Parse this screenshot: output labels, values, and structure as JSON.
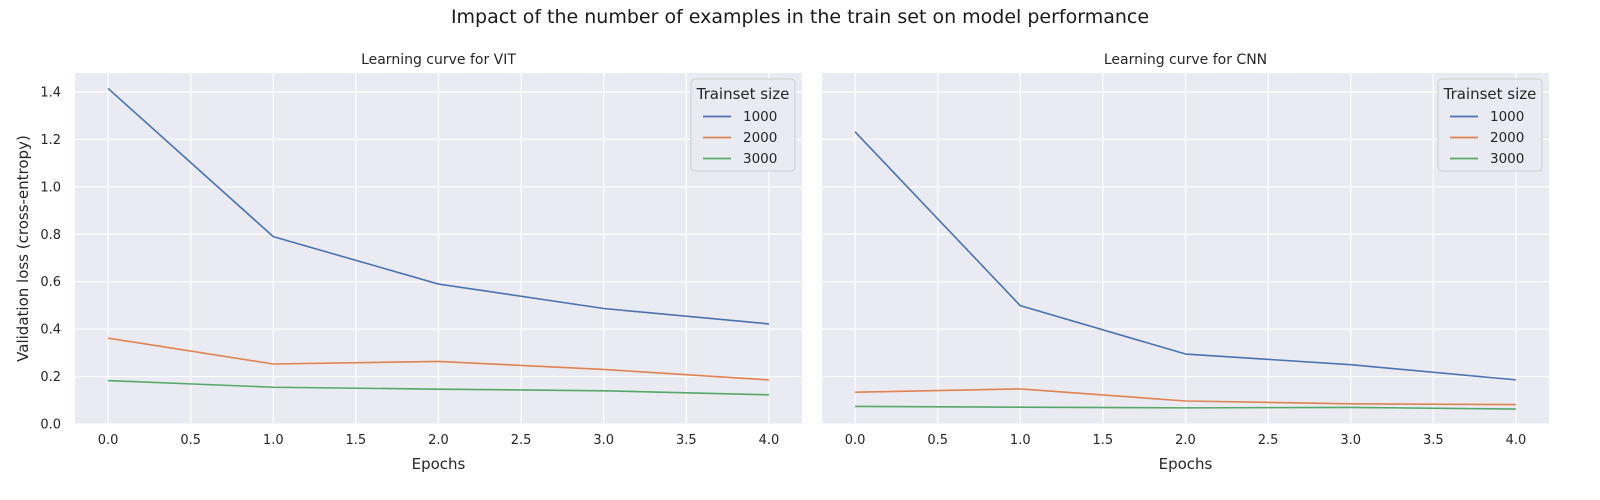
{
  "suptitle": "Impact of the number of examples in the train set on model performance",
  "style": {
    "background": "#eaeaf2",
    "grid_color": "#ffffff",
    "series_colors": [
      "#4c72b0",
      "#dd8452",
      "#55a868"
    ]
  },
  "chart_data": [
    {
      "type": "line",
      "title": "Learning curve for VIT",
      "xlabel": "Epochs",
      "ylabel": "Validation loss (cross-entropy)",
      "x": [
        0,
        1,
        2,
        3,
        4
      ],
      "xlim": [
        -0.2,
        4.2
      ],
      "ylim": [
        0,
        1.48
      ],
      "xticks": [
        "0.0",
        "0.5",
        "1.0",
        "1.5",
        "2.0",
        "2.5",
        "3.0",
        "3.5",
        "4.0"
      ],
      "yticks": [
        "0.0",
        "0.2",
        "0.4",
        "0.6",
        "0.8",
        "1.0",
        "1.2",
        "1.4"
      ],
      "grid": true,
      "legend": {
        "title": "Trainset size",
        "placement": "top-right"
      },
      "series": [
        {
          "name": "1000",
          "values": [
            1.415,
            0.79,
            0.59,
            0.487,
            0.422
          ]
        },
        {
          "name": "2000",
          "values": [
            0.362,
            0.253,
            0.264,
            0.23,
            0.186
          ]
        },
        {
          "name": "3000",
          "values": [
            0.183,
            0.155,
            0.147,
            0.14,
            0.123
          ]
        }
      ]
    },
    {
      "type": "line",
      "title": "Learning curve for CNN",
      "xlabel": "Epochs",
      "ylabel": "",
      "x": [
        0,
        1,
        2,
        3,
        4
      ],
      "xlim": [
        -0.2,
        4.2
      ],
      "ylim": [
        0,
        1.48
      ],
      "xticks": [
        "0.0",
        "0.5",
        "1.0",
        "1.5",
        "2.0",
        "2.5",
        "3.0",
        "3.5",
        "4.0"
      ],
      "yticks": [],
      "grid": true,
      "legend": {
        "title": "Trainset size",
        "placement": "top-right"
      },
      "series": [
        {
          "name": "1000",
          "values": [
            1.232,
            0.499,
            0.295,
            0.25,
            0.186
          ]
        },
        {
          "name": "2000",
          "values": [
            0.134,
            0.148,
            0.097,
            0.085,
            0.082
          ]
        },
        {
          "name": "3000",
          "values": [
            0.074,
            0.071,
            0.068,
            0.07,
            0.063
          ]
        }
      ]
    }
  ]
}
